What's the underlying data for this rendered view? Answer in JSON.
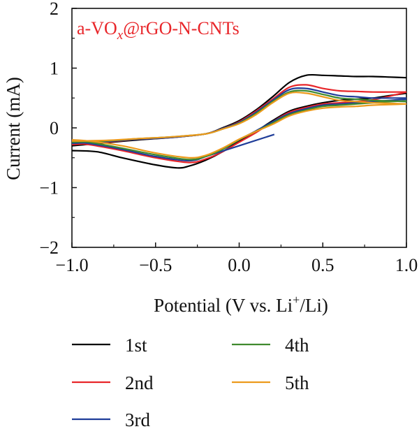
{
  "chart_data": {
    "type": "line",
    "annotation": {
      "prefix": "a-VO",
      "sub": "x",
      "suffix": "@rGO-N-CNTs",
      "color": "#e8262a"
    },
    "xlabel": {
      "prefix": "Potential (V vs. Li",
      "sup": "+",
      "suffix": "/Li)"
    },
    "ylabel": "Current (mA)",
    "xlim": [
      -1.0,
      1.0
    ],
    "ylim": [
      -2,
      2
    ],
    "x_ticks": [
      "−1.0",
      "−0.5",
      "0.0",
      "0.5",
      "1.0"
    ],
    "y_ticks": [
      "−2",
      "−1",
      "0",
      "1",
      "2"
    ],
    "grid": false,
    "legend_position": "bottom",
    "series": [
      {
        "name": "1st",
        "color": "#000000",
        "upper": [
          [
            -1.0,
            -0.3
          ],
          [
            -0.8,
            -0.25
          ],
          [
            -0.6,
            -0.2
          ],
          [
            -0.4,
            -0.16
          ],
          [
            -0.2,
            -0.1
          ],
          [
            -0.1,
            0.0
          ],
          [
            0.0,
            0.12
          ],
          [
            0.1,
            0.3
          ],
          [
            0.2,
            0.52
          ],
          [
            0.3,
            0.76
          ],
          [
            0.4,
            0.88
          ],
          [
            0.5,
            0.88
          ],
          [
            0.6,
            0.87
          ],
          [
            0.7,
            0.86
          ],
          [
            0.8,
            0.86
          ],
          [
            0.9,
            0.85
          ],
          [
            1.0,
            0.84
          ]
        ],
        "lower": [
          [
            1.0,
            0.58
          ],
          [
            0.9,
            0.54
          ],
          [
            0.8,
            0.5
          ],
          [
            0.7,
            0.48
          ],
          [
            0.6,
            0.46
          ],
          [
            0.5,
            0.42
          ],
          [
            0.4,
            0.36
          ],
          [
            0.3,
            0.28
          ],
          [
            0.2,
            0.12
          ],
          [
            0.1,
            -0.06
          ],
          [
            0.0,
            -0.22
          ],
          [
            -0.1,
            -0.4
          ],
          [
            -0.2,
            -0.54
          ],
          [
            -0.3,
            -0.64
          ],
          [
            -0.37,
            -0.67
          ],
          [
            -0.5,
            -0.62
          ],
          [
            -0.7,
            -0.5
          ],
          [
            -0.85,
            -0.4
          ],
          [
            -1.0,
            -0.38
          ]
        ]
      },
      {
        "name": "2nd",
        "color": "#e8262a",
        "upper": [
          [
            -1.0,
            -0.28
          ],
          [
            -0.8,
            -0.24
          ],
          [
            -0.6,
            -0.19
          ],
          [
            -0.4,
            -0.16
          ],
          [
            -0.2,
            -0.1
          ],
          [
            -0.1,
            -0.01
          ],
          [
            0.0,
            0.1
          ],
          [
            0.1,
            0.28
          ],
          [
            0.2,
            0.48
          ],
          [
            0.3,
            0.68
          ],
          [
            0.4,
            0.72
          ],
          [
            0.5,
            0.66
          ],
          [
            0.6,
            0.62
          ],
          [
            0.7,
            0.61
          ],
          [
            0.8,
            0.6
          ],
          [
            0.9,
            0.6
          ],
          [
            1.0,
            0.6
          ]
        ],
        "lower": [
          [
            1.0,
            0.6
          ],
          [
            0.9,
            0.53
          ],
          [
            0.8,
            0.47
          ],
          [
            0.7,
            0.44
          ],
          [
            0.6,
            0.42
          ],
          [
            0.5,
            0.4
          ],
          [
            0.4,
            0.34
          ],
          [
            0.3,
            0.26
          ],
          [
            0.2,
            0.1
          ],
          [
            0.1,
            -0.08
          ],
          [
            0.0,
            -0.24
          ],
          [
            -0.1,
            -0.4
          ],
          [
            -0.2,
            -0.52
          ],
          [
            -0.3,
            -0.58
          ],
          [
            -0.5,
            -0.5
          ],
          [
            -0.7,
            -0.38
          ],
          [
            -0.9,
            -0.28
          ],
          [
            -1.0,
            -0.26
          ]
        ]
      },
      {
        "name": "3rd",
        "color": "#1f3d99",
        "upper": [
          [
            -1.0,
            -0.26
          ],
          [
            -0.8,
            -0.23
          ],
          [
            -0.6,
            -0.19
          ],
          [
            -0.4,
            -0.16
          ],
          [
            -0.2,
            -0.1
          ],
          [
            -0.1,
            -0.01
          ],
          [
            0.0,
            0.09
          ],
          [
            0.1,
            0.26
          ],
          [
            0.2,
            0.46
          ],
          [
            0.3,
            0.64
          ],
          [
            0.4,
            0.66
          ],
          [
            0.5,
            0.6
          ],
          [
            0.6,
            0.54
          ],
          [
            0.7,
            0.52
          ],
          [
            0.8,
            0.5
          ],
          [
            0.9,
            0.5
          ],
          [
            1.0,
            0.5
          ]
        ],
        "lower": [
          [
            1.0,
            0.48
          ],
          [
            0.9,
            0.46
          ],
          [
            0.8,
            0.44
          ],
          [
            0.7,
            0.42
          ],
          [
            0.6,
            0.4
          ],
          [
            0.5,
            0.38
          ],
          [
            0.4,
            0.32
          ],
          [
            0.3,
            0.24
          ],
          [
            0.2,
            0.1
          ],
          [
            0.1,
            -0.05
          ],
          [
            0.0,
            -0.2
          ],
          [
            -0.1,
            -0.36
          ],
          [
            -0.2,
            -0.48
          ],
          [
            -0.3,
            -0.55
          ],
          [
            -0.5,
            -0.48
          ],
          [
            -0.7,
            -0.36
          ],
          [
            -0.9,
            -0.26
          ],
          [
            -1.0,
            -0.24
          ]
        ],
        "tangent": [
          [
            -0.2,
            -0.48
          ],
          [
            0.21,
            -0.11
          ]
        ]
      },
      {
        "name": "4th",
        "color": "#3f8a2e",
        "upper": [
          [
            -1.0,
            -0.24
          ],
          [
            -0.8,
            -0.22
          ],
          [
            -0.6,
            -0.18
          ],
          [
            -0.4,
            -0.15
          ],
          [
            -0.2,
            -0.1
          ],
          [
            -0.1,
            -0.02
          ],
          [
            0.0,
            0.08
          ],
          [
            0.1,
            0.24
          ],
          [
            0.2,
            0.44
          ],
          [
            0.3,
            0.6
          ],
          [
            0.4,
            0.62
          ],
          [
            0.5,
            0.56
          ],
          [
            0.6,
            0.5
          ],
          [
            0.7,
            0.48
          ],
          [
            0.8,
            0.46
          ],
          [
            0.9,
            0.45
          ],
          [
            1.0,
            0.44
          ]
        ],
        "lower": [
          [
            1.0,
            0.45
          ],
          [
            0.9,
            0.44
          ],
          [
            0.8,
            0.42
          ],
          [
            0.7,
            0.4
          ],
          [
            0.6,
            0.38
          ],
          [
            0.5,
            0.36
          ],
          [
            0.4,
            0.3
          ],
          [
            0.3,
            0.22
          ],
          [
            0.2,
            0.08
          ],
          [
            0.1,
            -0.06
          ],
          [
            0.0,
            -0.2
          ],
          [
            -0.1,
            -0.36
          ],
          [
            -0.2,
            -0.48
          ],
          [
            -0.3,
            -0.53
          ],
          [
            -0.5,
            -0.45
          ],
          [
            -0.7,
            -0.34
          ],
          [
            -0.9,
            -0.24
          ],
          [
            -1.0,
            -0.22
          ]
        ]
      },
      {
        "name": "5th",
        "color": "#ec9a1c",
        "upper": [
          [
            -1.0,
            -0.22
          ],
          [
            -0.8,
            -0.21
          ],
          [
            -0.6,
            -0.18
          ],
          [
            -0.4,
            -0.15
          ],
          [
            -0.2,
            -0.1
          ],
          [
            -0.1,
            -0.02
          ],
          [
            0.0,
            0.07
          ],
          [
            0.1,
            0.22
          ],
          [
            0.2,
            0.42
          ],
          [
            0.3,
            0.58
          ],
          [
            0.4,
            0.58
          ],
          [
            0.5,
            0.52
          ],
          [
            0.6,
            0.46
          ],
          [
            0.7,
            0.44
          ],
          [
            0.8,
            0.42
          ],
          [
            0.9,
            0.41
          ],
          [
            1.0,
            0.4
          ]
        ],
        "lower": [
          [
            1.0,
            0.4
          ],
          [
            0.9,
            0.39
          ],
          [
            0.8,
            0.38
          ],
          [
            0.7,
            0.36
          ],
          [
            0.6,
            0.35
          ],
          [
            0.5,
            0.33
          ],
          [
            0.4,
            0.28
          ],
          [
            0.3,
            0.2
          ],
          [
            0.2,
            0.06
          ],
          [
            0.1,
            -0.06
          ],
          [
            0.0,
            -0.19
          ],
          [
            -0.1,
            -0.34
          ],
          [
            -0.2,
            -0.46
          ],
          [
            -0.3,
            -0.5
          ],
          [
            -0.5,
            -0.42
          ],
          [
            -0.7,
            -0.3
          ],
          [
            -0.9,
            -0.22
          ],
          [
            -1.0,
            -0.2
          ]
        ]
      }
    ]
  }
}
